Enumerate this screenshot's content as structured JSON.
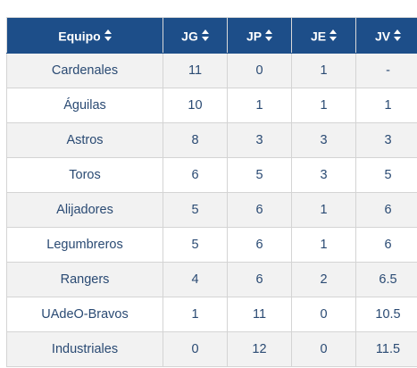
{
  "table": {
    "headers": {
      "team": "Equipo",
      "jg": "JG",
      "jp": "JP",
      "je": "JE",
      "jv": "JV"
    },
    "sort_icon": "sort-up-down-icon",
    "colors": {
      "header_bg": "#1d4e89",
      "header_text": "#ffffff",
      "cell_text": "#2a4a73",
      "stripe": "#f2f2f2"
    },
    "rows": [
      {
        "team": "Cardenales",
        "jg": "11",
        "jp": "0",
        "je": "1",
        "jv": "-"
      },
      {
        "team": "Águilas",
        "jg": "10",
        "jp": "1",
        "je": "1",
        "jv": "1"
      },
      {
        "team": "Astros",
        "jg": "8",
        "jp": "3",
        "je": "3",
        "jv": "3"
      },
      {
        "team": "Toros",
        "jg": "6",
        "jp": "5",
        "je": "3",
        "jv": "5"
      },
      {
        "team": "Alijadores",
        "jg": "5",
        "jp": "6",
        "je": "1",
        "jv": "6"
      },
      {
        "team": "Legumbreros",
        "jg": "5",
        "jp": "6",
        "je": "1",
        "jv": "6"
      },
      {
        "team": "Rangers",
        "jg": "4",
        "jp": "6",
        "je": "2",
        "jv": "6.5"
      },
      {
        "team": "UAdeO-Bravos",
        "jg": "1",
        "jp": "11",
        "je": "0",
        "jv": "10.5"
      },
      {
        "team": "Industriales",
        "jg": "0",
        "jp": "12",
        "je": "0",
        "jv": "11.5"
      }
    ]
  }
}
